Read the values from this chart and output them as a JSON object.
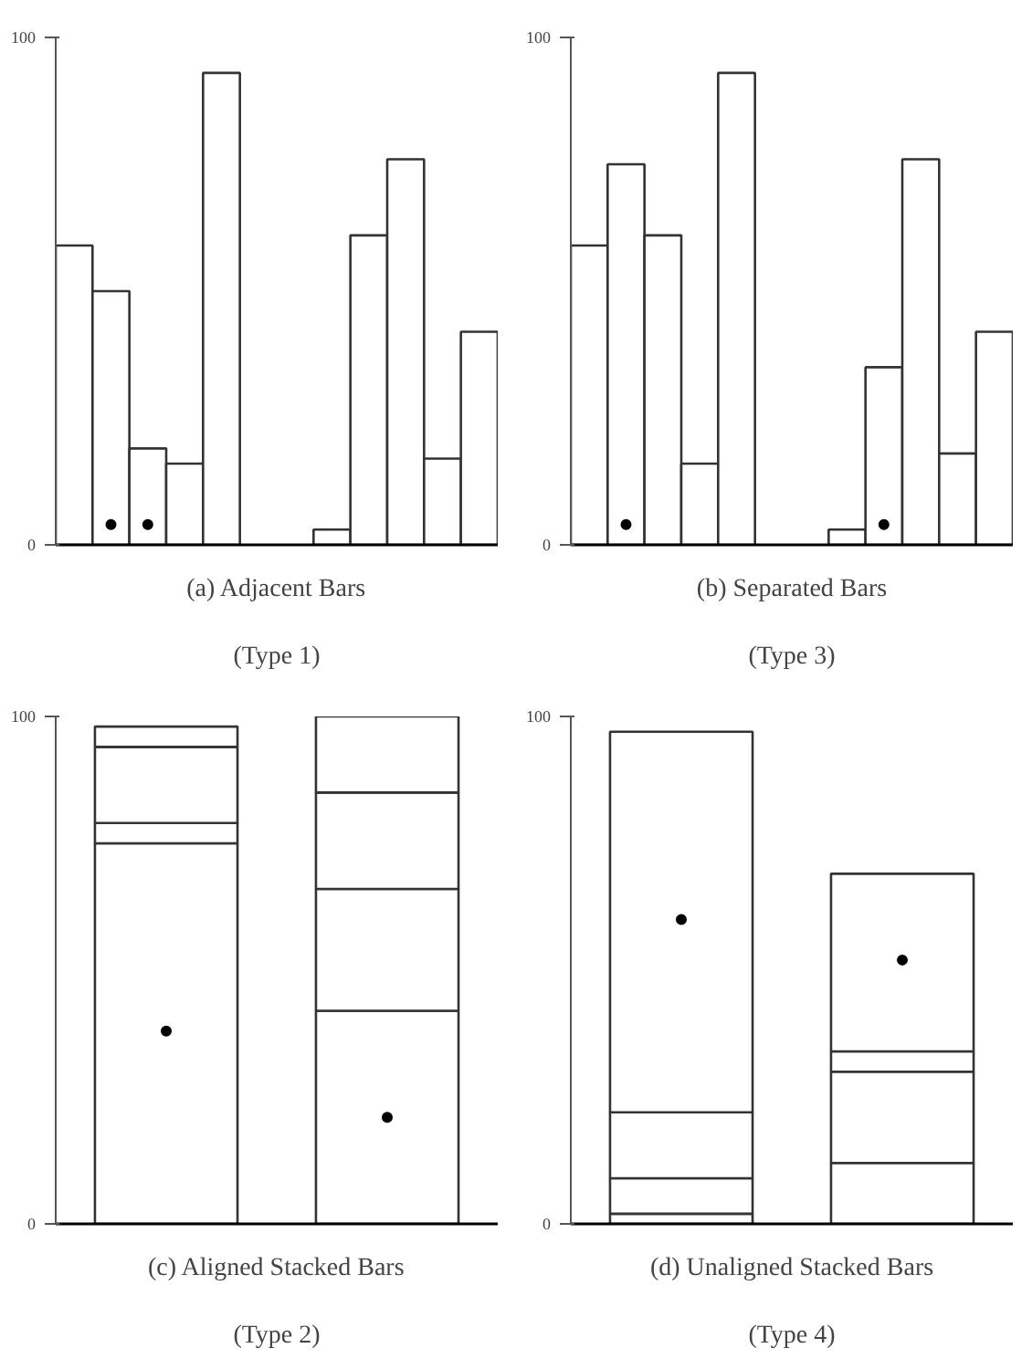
{
  "chart_data": [
    {
      "type": "bar",
      "title": "(a) Adjacent Bars",
      "subtitle": "(Type 1)",
      "categories": [
        null,
        null,
        null,
        null,
        null,
        null,
        null,
        null,
        null,
        null,
        null,
        null
      ],
      "ylim": [
        0,
        100
      ],
      "yticks": [
        0,
        100
      ],
      "series": [
        {
          "color": "#ffffff",
          "values": [
            59,
            50,
            19,
            16,
            93,
            null,
            null,
            3,
            61,
            76,
            17,
            42
          ]
        },
        {
          "type": "scatter",
          "color": "#000000",
          "marker": "circle",
          "values": [
            null,
            4,
            4,
            null,
            null,
            null,
            null,
            null,
            null,
            null,
            null,
            null
          ]
        }
      ]
    },
    {
      "type": "bar",
      "title": "(b) Separated Bars",
      "subtitle": "(Type 3)",
      "categories": [
        null,
        null,
        null,
        null,
        null,
        null,
        null,
        null,
        null,
        null,
        null,
        null
      ],
      "ylim": [
        0,
        100
      ],
      "yticks": [
        0,
        100
      ],
      "series": [
        {
          "color": "#ffffff",
          "values": [
            59,
            75,
            61,
            16,
            93,
            null,
            null,
            3,
            35,
            76,
            18,
            42
          ]
        },
        {
          "type": "scatter",
          "color": "#000000",
          "marker": "circle",
          "values": [
            null,
            4,
            null,
            null,
            null,
            null,
            null,
            null,
            4,
            null,
            null,
            null
          ]
        }
      ]
    },
    {
      "type": "bar",
      "title": "(c) Aligned Stacked Bars",
      "subtitle": "(Type 2)",
      "stacked": true,
      "categories": [
        null,
        null
      ],
      "ylim": [
        0,
        100
      ],
      "yticks": [
        0,
        100
      ],
      "series": [
        {
          "color": "#ffffff",
          "values": [
            75,
            42
          ]
        },
        {
          "color": "#ffffff",
          "values": [
            4,
            24
          ]
        },
        {
          "color": "#ffffff",
          "values": [
            15,
            19
          ]
        },
        {
          "color": "#ffffff",
          "values": [
            4,
            15
          ]
        },
        {
          "type": "scatter",
          "color": "#000000",
          "marker": "circle",
          "values": [
            38,
            21
          ]
        }
      ]
    },
    {
      "type": "bar",
      "title": "(d) Unaligned Stacked Bars",
      "subtitle": "(Type 4)",
      "stacked": true,
      "categories": [
        null,
        null
      ],
      "ylim": [
        0,
        100
      ],
      "yticks": [
        0,
        100
      ],
      "series": [
        {
          "color": "#ffffff",
          "values": [
            2,
            12
          ]
        },
        {
          "color": "#ffffff",
          "values": [
            7,
            18
          ]
        },
        {
          "color": "#ffffff",
          "values": [
            13,
            4
          ]
        },
        {
          "color": "#ffffff",
          "values": [
            75,
            35
          ]
        },
        {
          "type": "scatter",
          "color": "#000000",
          "marker": "circle",
          "values": [
            60,
            52
          ]
        }
      ]
    }
  ]
}
